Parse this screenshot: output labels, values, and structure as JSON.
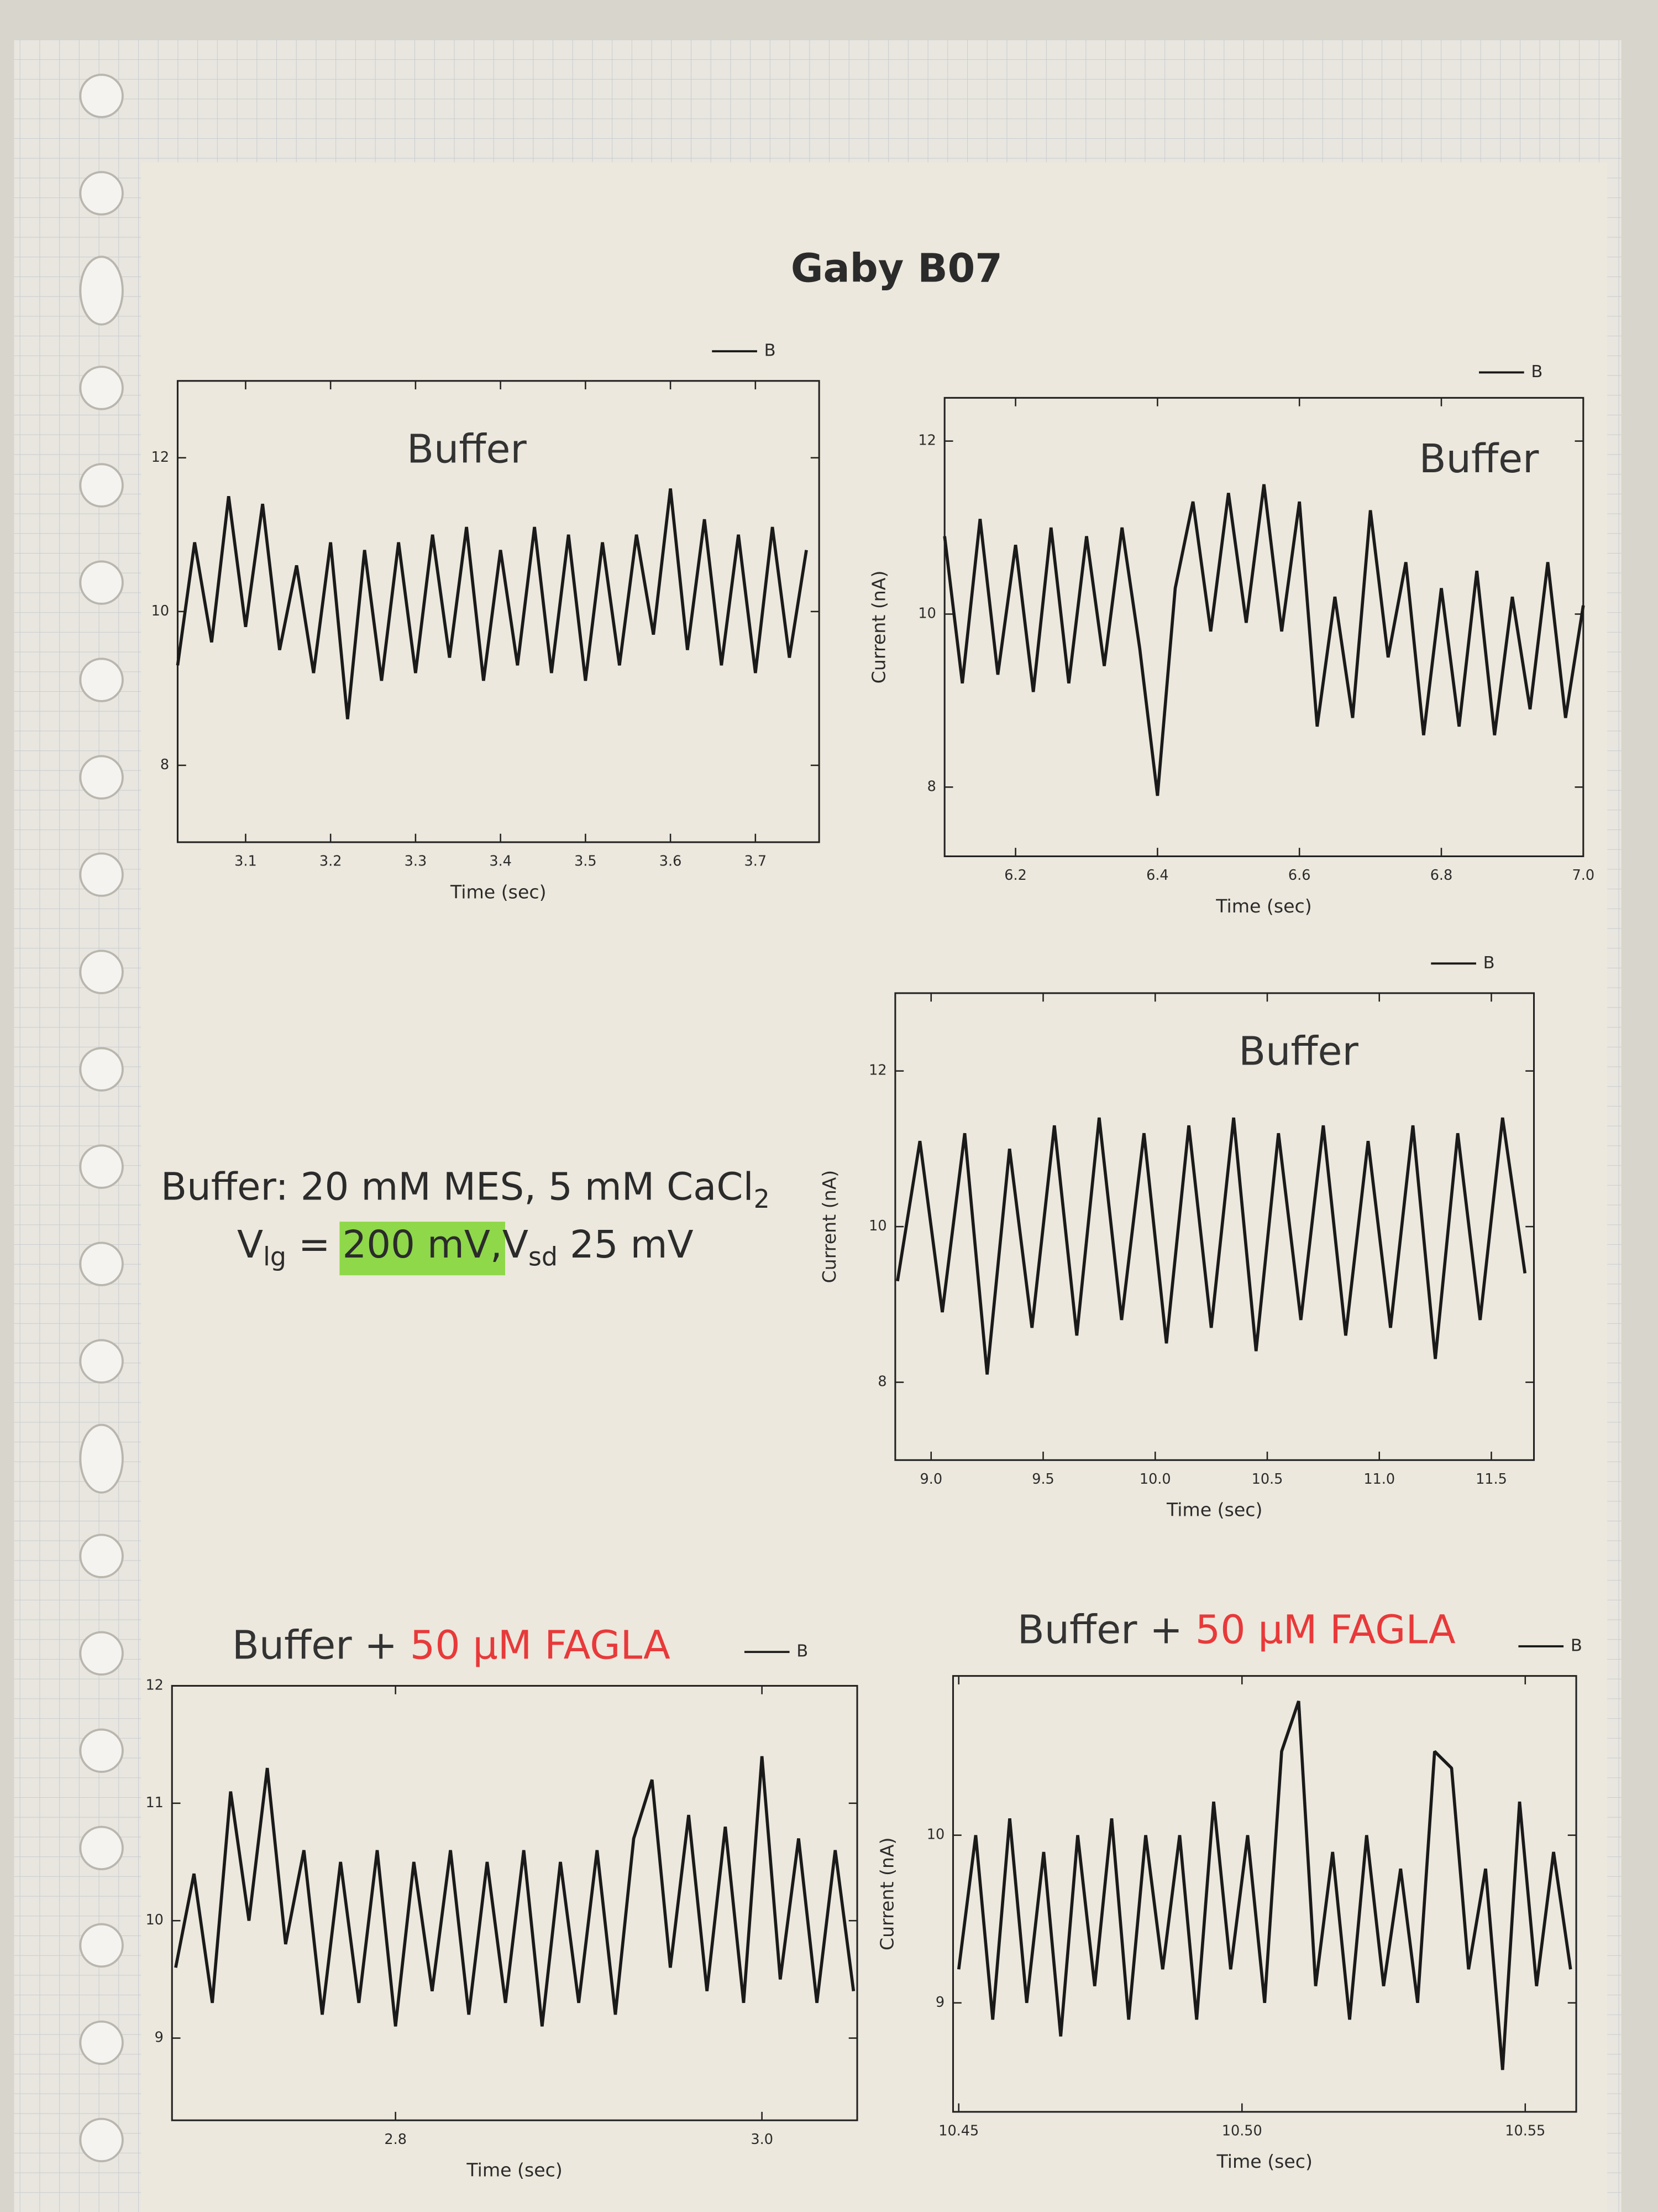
{
  "page": {
    "title": "Gaby B07",
    "note": {
      "line1": [
        "Buffer: 20 mM MES, 5 mM CaCl",
        "2"
      ],
      "line2": [
        "V",
        "lg",
        " = ",
        "200 mV,",
        "V",
        "sd",
        " 25 mV"
      ],
      "highlight_color": "#8fd84a"
    }
  },
  "chart_data": [
    {
      "type": "line",
      "title": [
        "Buffer"
      ],
      "title_colors": [
        "#333333"
      ],
      "xlabel": "Time (sec)",
      "xlim": [
        3.02,
        3.775
      ],
      "ylim": [
        7,
        13
      ],
      "xticks": [
        3.1,
        3.2,
        3.3,
        3.4,
        3.5,
        3.6,
        3.7
      ],
      "yticks": [
        8,
        10,
        12
      ],
      "x": [
        3.02,
        3.04,
        3.06,
        3.08,
        3.1,
        3.12,
        3.14,
        3.16,
        3.18,
        3.2,
        3.22,
        3.24,
        3.26,
        3.28,
        3.3,
        3.32,
        3.34,
        3.36,
        3.38,
        3.4,
        3.42,
        3.44,
        3.46,
        3.48,
        3.5,
        3.52,
        3.54,
        3.56,
        3.58,
        3.6,
        3.62,
        3.64,
        3.66,
        3.68,
        3.7,
        3.72,
        3.74,
        3.76
      ],
      "series": [
        {
          "name": "B",
          "color": "#1a1a1a",
          "values": [
            9.3,
            10.9,
            9.6,
            11.5,
            9.8,
            11.4,
            9.5,
            10.6,
            9.2,
            10.9,
            8.6,
            10.8,
            9.1,
            10.9,
            9.2,
            11.0,
            9.4,
            11.1,
            9.1,
            10.8,
            9.3,
            11.1,
            9.2,
            11.0,
            9.1,
            10.9,
            9.3,
            11.0,
            9.7,
            11.6,
            9.5,
            11.2,
            9.3,
            11.0,
            9.2,
            11.1,
            9.4,
            10.8
          ]
        }
      ]
    },
    {
      "type": "line",
      "title": [
        "Buffer"
      ],
      "title_colors": [
        "#333333"
      ],
      "xlabel": "Time (sec)",
      "ylabel": "Current (nA)",
      "xlim": [
        6.1,
        7.0
      ],
      "ylim": [
        7.2,
        12.5
      ],
      "xticks": [
        6.2,
        6.4,
        6.6,
        6.8,
        {
          "value": 7.0,
          "label": "7.0"
        }
      ],
      "yticks": [
        8,
        10,
        12
      ],
      "x": [
        6.1,
        6.125,
        6.15,
        6.175,
        6.2,
        6.225,
        6.25,
        6.275,
        6.3,
        6.325,
        6.35,
        6.375,
        6.4,
        6.425,
        6.45,
        6.475,
        6.5,
        6.525,
        6.55,
        6.575,
        6.6,
        6.625,
        6.65,
        6.675,
        6.7,
        6.725,
        6.75,
        6.775,
        6.8,
        6.825,
        6.85,
        6.875,
        6.9,
        6.925,
        6.95,
        6.975,
        7.0
      ],
      "series": [
        {
          "name": "B",
          "color": "#1a1a1a",
          "values": [
            10.9,
            9.2,
            11.1,
            9.3,
            10.8,
            9.1,
            11.0,
            9.2,
            10.9,
            9.4,
            11.0,
            9.6,
            7.9,
            10.3,
            11.3,
            9.8,
            11.4,
            9.9,
            11.5,
            9.8,
            11.3,
            8.7,
            10.2,
            8.8,
            11.2,
            9.5,
            10.6,
            8.6,
            10.3,
            8.7,
            10.5,
            8.6,
            10.2,
            8.9,
            10.6,
            8.8,
            10.1
          ]
        }
      ]
    },
    {
      "type": "line",
      "title": [
        "Buffer"
      ],
      "title_colors": [
        "#333333"
      ],
      "xlabel": "Time (sec)",
      "ylabel": "Current (nA)",
      "xlim": [
        8.84,
        11.69
      ],
      "ylim": [
        7,
        13
      ],
      "xticks": [
        {
          "value": 9.0,
          "label": "9.0"
        },
        9.5,
        {
          "value": 10.0,
          "label": "10.0"
        },
        10.5,
        {
          "value": 11.0,
          "label": "11.0"
        },
        11.5
      ],
      "yticks": [
        8,
        10,
        12
      ],
      "x": [
        8.85,
        8.95,
        9.05,
        9.15,
        9.25,
        9.35,
        9.45,
        9.55,
        9.65,
        9.75,
        9.85,
        9.95,
        10.05,
        10.15,
        10.25,
        10.35,
        10.45,
        10.55,
        10.65,
        10.75,
        10.85,
        10.95,
        11.05,
        11.15,
        11.25,
        11.35,
        11.45,
        11.55,
        11.65
      ],
      "series": [
        {
          "name": "B",
          "color": "#1a1a1a",
          "values": [
            9.3,
            11.1,
            8.9,
            11.2,
            8.1,
            11.0,
            8.7,
            11.3,
            8.6,
            11.4,
            8.8,
            11.2,
            8.5,
            11.3,
            8.7,
            11.4,
            8.4,
            11.2,
            8.8,
            11.3,
            8.6,
            11.1,
            8.7,
            11.3,
            8.3,
            11.2,
            8.8,
            11.4,
            9.4
          ]
        }
      ]
    },
    {
      "type": "line",
      "title": [
        "Buffer + ",
        "50 μM FAGLA"
      ],
      "title_colors": [
        "#333333",
        "#e8393a"
      ],
      "xlabel": "Time (sec)",
      "xlim": [
        2.678,
        3.052
      ],
      "ylim": [
        8.3,
        12
      ],
      "xticks": [
        2.8,
        {
          "value": 3.0,
          "label": "3.0"
        }
      ],
      "yticks": [
        9,
        10,
        11,
        12
      ],
      "x": [
        2.68,
        2.69,
        2.7,
        2.71,
        2.72,
        2.73,
        2.74,
        2.75,
        2.76,
        2.77,
        2.78,
        2.79,
        2.8,
        2.81,
        2.82,
        2.83,
        2.84,
        2.85,
        2.86,
        2.87,
        2.88,
        2.89,
        2.9,
        2.91,
        2.92,
        2.93,
        2.94,
        2.95,
        2.96,
        2.97,
        2.98,
        2.99,
        3.0,
        3.01,
        3.02,
        3.03,
        3.04,
        3.05
      ],
      "series": [
        {
          "name": "B",
          "color": "#1a1a1a",
          "values": [
            9.6,
            10.4,
            9.3,
            11.1,
            10.0,
            11.3,
            9.8,
            10.6,
            9.2,
            10.5,
            9.3,
            10.6,
            9.1,
            10.5,
            9.4,
            10.6,
            9.2,
            10.5,
            9.3,
            10.6,
            9.1,
            10.5,
            9.3,
            10.6,
            9.2,
            10.7,
            11.2,
            9.6,
            10.9,
            9.4,
            10.8,
            9.3,
            11.4,
            9.5,
            10.7,
            9.3,
            10.6,
            9.4
          ]
        }
      ]
    },
    {
      "type": "line",
      "title": [
        "Buffer + ",
        "50 μM FAGLA"
      ],
      "title_colors": [
        "#333333",
        "#e8393a"
      ],
      "xlabel": "Time (sec)",
      "ylabel": "Current (nA)",
      "xlim": [
        10.449,
        10.559
      ],
      "ylim": [
        8.35,
        10.95
      ],
      "xticks": [
        10.45,
        {
          "value": 10.5,
          "label": "10.50"
        },
        10.55
      ],
      "yticks": [
        9,
        10
      ],
      "x": [
        10.45,
        10.453,
        10.456,
        10.459,
        10.462,
        10.465,
        10.468,
        10.471,
        10.474,
        10.477,
        10.48,
        10.483,
        10.486,
        10.489,
        10.492,
        10.495,
        10.498,
        10.501,
        10.504,
        10.507,
        10.51,
        10.513,
        10.516,
        10.519,
        10.522,
        10.525,
        10.528,
        10.531,
        10.534,
        10.537,
        10.54,
        10.543,
        10.546,
        10.549,
        10.552,
        10.555,
        10.558
      ],
      "series": [
        {
          "name": "B",
          "color": "#1a1a1a",
          "values": [
            9.2,
            10.0,
            8.9,
            10.1,
            9.0,
            9.9,
            8.8,
            10.0,
            9.1,
            10.1,
            8.9,
            10.0,
            9.2,
            10.0,
            8.9,
            10.2,
            9.2,
            10.0,
            9.0,
            10.5,
            10.8,
            9.1,
            9.9,
            8.9,
            10.0,
            9.1,
            9.8,
            9.0,
            10.5,
            10.4,
            9.2,
            9.8,
            8.6,
            10.2,
            9.1,
            9.9,
            9.2
          ]
        }
      ]
    }
  ]
}
